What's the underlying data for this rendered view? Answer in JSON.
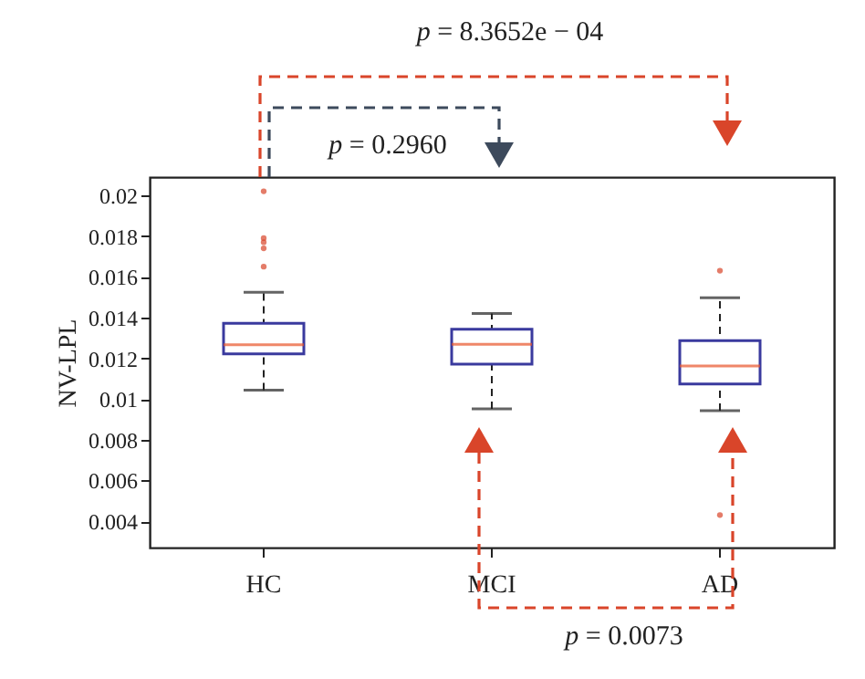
{
  "chart_data": {
    "type": "box",
    "ylabel": "NV-LPL",
    "categories": [
      "HC",
      "MCI",
      "AD"
    ],
    "ylim": [
      0.0027,
      0.0209
    ],
    "yticks": [
      0.004,
      0.006,
      0.008,
      0.01,
      0.012,
      0.014,
      0.016,
      0.018,
      0.02
    ],
    "boxes": [
      {
        "low": 0.01043,
        "q1": 0.01222,
        "median": 0.01266,
        "q3": 0.01372,
        "high": 0.01524,
        "outliers": [
          0.0202,
          0.0179,
          0.0177,
          0.0174,
          0.0165
        ]
      },
      {
        "low": 0.00951,
        "q1": 0.01171,
        "median": 0.01269,
        "q3": 0.01342,
        "high": 0.0142
      },
      {
        "low": 0.00942,
        "q1": 0.01073,
        "median": 0.01162,
        "q3": 0.01286,
        "high": 0.01497,
        "outliers": [
          0.0163,
          0.0043
        ]
      }
    ],
    "annotations": [
      "p = 8.3652e − 04",
      "p = 0.2960",
      "p = 0.0073"
    ]
  }
}
